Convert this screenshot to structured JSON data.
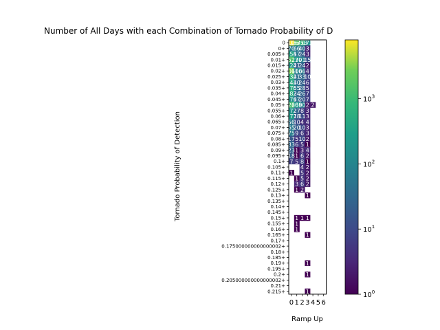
{
  "chart_data": {
    "type": "heatmap",
    "title": "Number of All Days with each Combination of Tornado Probability of D",
    "xlabel": "Ramp Up",
    "ylabel": "Tornado Probability of Detection",
    "x_categories": [
      "0",
      "1",
      "2",
      "3",
      "4",
      "5",
      "6"
    ],
    "y_categories": [
      "0",
      "0+",
      "0.005+",
      "0.01+",
      "0.015+",
      "0.02+",
      "0.025+",
      "0.03+",
      "0.035+",
      "0.04+",
      "0.045+",
      "0.05+",
      "0.055+",
      "0.06+",
      "0.065+",
      "0.07+",
      "0.075+",
      "0.08+",
      "0.085+",
      "0.09+",
      "0.095+",
      "0.1+",
      "0.105+",
      "0.11+",
      "0.115+",
      "0.12+",
      "0.125+",
      "0.13+",
      "0.135+",
      "0.14+",
      "0.145+",
      "0.15+",
      "0.155+",
      "0.16+",
      "0.165+",
      "0.17+",
      "0.175000000000000002+",
      "0.18+",
      "0.185+",
      "0.19+",
      "0.195+",
      "0.2+",
      "0.205000000000000002+",
      "0.21+",
      "0.215+"
    ],
    "colorbar": {
      "scale": "log",
      "range": [
        1,
        8000
      ],
      "ticks": [
        "10^0",
        "10^1",
        "10^2",
        "10^3"
      ]
    },
    "colormap": "viridis",
    "values": [
      [
        9106,
        1635,
        773,
        173,
        0,
        0,
        0
      ],
      [
        70,
        66,
        40,
        3,
        0,
        0,
        0
      ],
      [
        354,
        57,
        24,
        3,
        0,
        0,
        0
      ],
      [
        1527,
        230,
        91,
        15,
        0,
        0,
        0
      ],
      [
        224,
        21,
        24,
        2,
        0,
        0,
        0
      ],
      [
        3061,
        100,
        66,
        4,
        0,
        0,
        0
      ],
      [
        632,
        41,
        33,
        10,
        0,
        0,
        0
      ],
      [
        443,
        40,
        24,
        6,
        0,
        0,
        0
      ],
      [
        476,
        55,
        28,
        5,
        0,
        0,
        0
      ],
      [
        482,
        34,
        26,
        7,
        0,
        0,
        0
      ],
      [
        179,
        47,
        20,
        7,
        0,
        0,
        0
      ],
      [
        1260,
        268,
        90,
        2,
        2,
        0,
        0
      ],
      [
        172,
        27,
        8,
        3,
        0,
        0,
        0
      ],
      [
        277,
        18,
        11,
        3,
        0,
        0,
        0
      ],
      [
        56,
        10,
        4,
        4,
        0,
        0,
        0
      ],
      [
        65,
        20,
        10,
        3,
        0,
        0,
        0
      ],
      [
        75,
        9,
        6,
        3,
        0,
        0,
        0
      ],
      [
        17,
        5,
        10,
        2,
        0,
        0,
        0
      ],
      [
        33,
        6,
        5,
        1,
        0,
        0,
        0
      ],
      [
        23,
        1,
        3,
        4,
        0,
        0,
        0
      ],
      [
        18,
        1,
        6,
        2,
        0,
        0,
        0
      ],
      [
        7,
        5,
        8,
        1,
        0,
        0,
        0
      ],
      [
        0,
        0,
        4,
        2,
        0,
        0,
        0
      ],
      [
        1,
        0,
        5,
        2,
        0,
        0,
        0
      ],
      [
        0,
        1,
        5,
        2,
        0,
        0,
        0
      ],
      [
        0,
        3,
        6,
        2,
        0,
        0,
        0
      ],
      [
        0,
        1,
        2,
        0,
        0,
        0,
        0
      ],
      [
        0,
        0,
        0,
        1,
        0,
        0,
        0
      ],
      [
        0,
        0,
        0,
        0,
        0,
        0,
        0
      ],
      [
        0,
        0,
        0,
        0,
        0,
        0,
        0
      ],
      [
        0,
        0,
        0,
        0,
        0,
        0,
        0
      ],
      [
        0,
        1,
        1,
        1,
        0,
        0,
        0
      ],
      [
        0,
        1,
        0,
        0,
        0,
        0,
        0
      ],
      [
        0,
        1,
        0,
        0,
        0,
        0,
        0
      ],
      [
        0,
        0,
        0,
        1,
        0,
        0,
        0
      ],
      [
        0,
        0,
        0,
        0,
        0,
        0,
        0
      ],
      [
        0,
        0,
        0,
        0,
        0,
        0,
        0
      ],
      [
        0,
        0,
        0,
        0,
        0,
        0,
        0
      ],
      [
        0,
        0,
        0,
        0,
        0,
        0,
        0
      ],
      [
        0,
        0,
        0,
        1,
        0,
        0,
        0
      ],
      [
        0,
        0,
        0,
        0,
        0,
        0,
        0
      ],
      [
        0,
        0,
        0,
        1,
        0,
        0,
        0
      ],
      [
        0,
        0,
        0,
        0,
        0,
        0,
        0
      ],
      [
        0,
        0,
        0,
        0,
        0,
        0,
        0
      ],
      [
        0,
        0,
        0,
        1,
        0,
        0,
        0
      ]
    ]
  }
}
